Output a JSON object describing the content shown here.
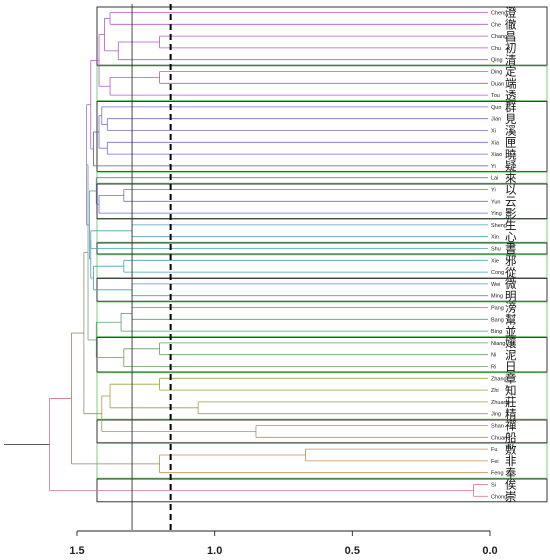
{
  "chart_data": {
    "type": "dendrogram",
    "orientation": "horizontal, root on left, leaves on right",
    "x_axis": {
      "range": [
        1.6,
        0.0
      ],
      "ticks": [
        1.5,
        1.0,
        0.5,
        0.0
      ],
      "tick_labels": [
        "1.5",
        "1.0",
        "0.5",
        "0.0"
      ],
      "reversed": true
    },
    "leaves": [
      {
        "id": "Cheng",
        "pinyin": "Cheng",
        "char": "澄"
      },
      {
        "id": "Che",
        "pinyin": "Che",
        "char": "徹"
      },
      {
        "id": "Chang",
        "pinyin": "Chang",
        "char": "昌"
      },
      {
        "id": "Chu",
        "pinyin": "Chu",
        "char": "初"
      },
      {
        "id": "Qing",
        "pinyin": "Qing",
        "char": "清"
      },
      {
        "id": "Ding",
        "pinyin": "Ding",
        "char": "定"
      },
      {
        "id": "Duan",
        "pinyin": "Duan",
        "char": "端"
      },
      {
        "id": "Tou",
        "pinyin": "Tou",
        "char": "透"
      },
      {
        "id": "Qun",
        "pinyin": "Qun",
        "char": "群"
      },
      {
        "id": "Jian",
        "pinyin": "Jian",
        "char": "見"
      },
      {
        "id": "Xi",
        "pinyin": "Xi",
        "char": "溪"
      },
      {
        "id": "Xia",
        "pinyin": "Xia",
        "char": "匣"
      },
      {
        "id": "Xiao",
        "pinyin": "Xiao",
        "char": "曉"
      },
      {
        "id": "Yi1",
        "pinyin": "Yi",
        "char": "疑"
      },
      {
        "id": "Lai",
        "pinyin": "Lai",
        "char": "來"
      },
      {
        "id": "Yi2",
        "pinyin": "Yi",
        "char": "以"
      },
      {
        "id": "Yun",
        "pinyin": "Yun",
        "char": "云"
      },
      {
        "id": "Ying",
        "pinyin": "Ying",
        "char": "影"
      },
      {
        "id": "Sheng",
        "pinyin": "Sheng",
        "char": "生"
      },
      {
        "id": "Xin",
        "pinyin": "Xin",
        "char": "心"
      },
      {
        "id": "Shu",
        "pinyin": "Shu",
        "char": "書"
      },
      {
        "id": "Xie",
        "pinyin": "Xie",
        "char": "邪"
      },
      {
        "id": "Cong",
        "pinyin": "Cong",
        "char": "從"
      },
      {
        "id": "Wei",
        "pinyin": "Wei",
        "char": "微"
      },
      {
        "id": "Ming",
        "pinyin": "Ming",
        "char": "明"
      },
      {
        "id": "Pang",
        "pinyin": "Pang",
        "char": "滂"
      },
      {
        "id": "Bang",
        "pinyin": "Bang",
        "char": "幫"
      },
      {
        "id": "Bing",
        "pinyin": "Bing",
        "char": "並"
      },
      {
        "id": "Niang",
        "pinyin": "Niang",
        "char": "孃"
      },
      {
        "id": "Ni",
        "pinyin": "Ni",
        "char": "泥"
      },
      {
        "id": "Ri",
        "pinyin": "Ri",
        "char": "日"
      },
      {
        "id": "Zhang",
        "pinyin": "Zhang",
        "char": "章"
      },
      {
        "id": "Zhi",
        "pinyin": "Zhi",
        "char": "知"
      },
      {
        "id": "Zhuang",
        "pinyin": "Zhuang",
        "char": "莊"
      },
      {
        "id": "Jing",
        "pinyin": "Jing",
        "char": "精"
      },
      {
        "id": "Shan",
        "pinyin": "Shan",
        "char": "禪"
      },
      {
        "id": "Chuan",
        "pinyin": "Chuan",
        "char": "船"
      },
      {
        "id": "Fu",
        "pinyin": "Fu",
        "char": "敷"
      },
      {
        "id": "Fei",
        "pinyin": "Fei",
        "char": "非"
      },
      {
        "id": "Feng",
        "pinyin": "Feng",
        "char": "奉"
      },
      {
        "id": "Si",
        "pinyin": "Si",
        "char": "俟"
      },
      {
        "id": "Chong",
        "pinyin": "Chong",
        "char": "崇"
      }
    ],
    "merges": [
      {
        "id": "m1",
        "children": [
          "Chang",
          "Chu"
        ],
        "height": 1.2,
        "color": "#b05cc8"
      },
      {
        "id": "m2",
        "children": [
          "m1",
          "Qing"
        ],
        "height": 1.35,
        "color": "#b05cc8"
      },
      {
        "id": "m3",
        "children": [
          "Cheng",
          "Che"
        ],
        "height": 1.38,
        "color": "#b05cc8"
      },
      {
        "id": "m4",
        "children": [
          "m3",
          "m2"
        ],
        "height": 1.4,
        "color": "#b05cc8"
      },
      {
        "id": "m5",
        "children": [
          "Ding",
          "Duan"
        ],
        "height": 1.2,
        "color": "#b05cc8"
      },
      {
        "id": "m6",
        "children": [
          "m5",
          "Tou"
        ],
        "height": 1.38,
        "color": "#b05cc8"
      },
      {
        "id": "m7",
        "children": [
          "m4",
          "m6"
        ],
        "height": 1.42,
        "color": "#b05cc8"
      },
      {
        "id": "m8",
        "children": [
          "Jian",
          "Xi"
        ],
        "height": 1.39,
        "color": "#7070c8"
      },
      {
        "id": "m9",
        "children": [
          "Qun",
          "m8"
        ],
        "height": 1.41,
        "color": "#7070c8"
      },
      {
        "id": "m10",
        "children": [
          "Xia",
          "Xiao"
        ],
        "height": 1.39,
        "color": "#7070c8"
      },
      {
        "id": "m11",
        "children": [
          "m9",
          "m10"
        ],
        "height": 1.42,
        "color": "#7070c8"
      },
      {
        "id": "m12",
        "children": [
          "m11",
          "Yi1"
        ],
        "height": 1.44,
        "color": "#5a5ab0"
      },
      {
        "id": "m13",
        "children": [
          "m7",
          "m12"
        ],
        "height": 1.45,
        "color": "#b05cc8"
      },
      {
        "id": "m14",
        "children": [
          "Yi2",
          "Yun"
        ],
        "height": 1.33,
        "color": "#7070c8"
      },
      {
        "id": "m15",
        "children": [
          "m14",
          "Ying"
        ],
        "height": 1.42,
        "color": "#7070c8"
      },
      {
        "id": "m16",
        "children": [
          "Lai",
          "m15"
        ],
        "height": 1.43,
        "color": "#7070c8"
      },
      {
        "id": "m17",
        "children": [
          "Sheng",
          "Xin"
        ],
        "height": 1.3,
        "color": "#4aa0b0"
      },
      {
        "id": "m18",
        "children": [
          "m17",
          "Shu"
        ],
        "height": 1.45,
        "color": "#4aa0b0"
      },
      {
        "id": "m19",
        "children": [
          "Xie",
          "Cong"
        ],
        "height": 1.33,
        "color": "#4aa0b0"
      },
      {
        "id": "m20",
        "children": [
          "Wei",
          "Ming"
        ],
        "height": 1.3,
        "color": "#4aa0b0"
      },
      {
        "id": "m21",
        "children": [
          "m19",
          "m20"
        ],
        "height": 1.44,
        "color": "#4aa0b0"
      },
      {
        "id": "m22",
        "children": [
          "m18",
          "m21"
        ],
        "height": 1.45,
        "color": "#4aa0b0"
      },
      {
        "id": "m23",
        "children": [
          "m16",
          "m22"
        ],
        "height": 1.455,
        "color": "#5a9ab0"
      },
      {
        "id": "m24",
        "children": [
          "m13",
          "m23"
        ],
        "height": 1.465,
        "color": "#8a7ab8"
      },
      {
        "id": "m25",
        "children": [
          "Pang",
          "Bang"
        ],
        "height": 1.3,
        "color": "#50a070"
      },
      {
        "id": "m26",
        "children": [
          "m25",
          "Bing"
        ],
        "height": 1.34,
        "color": "#50a070"
      },
      {
        "id": "m27",
        "children": [
          "Niang",
          "Ni"
        ],
        "height": 1.2,
        "color": "#60a060"
      },
      {
        "id": "m28",
        "children": [
          "m27",
          "Ri"
        ],
        "height": 1.33,
        "color": "#60a060"
      },
      {
        "id": "m29",
        "children": [
          "m26",
          "m28"
        ],
        "height": 1.43,
        "color": "#5aa068"
      },
      {
        "id": "m30",
        "children": [
          "m24",
          "m29"
        ],
        "height": 1.46,
        "color": "#7a9a8a"
      },
      {
        "id": "m31",
        "children": [
          "Zhang",
          "Zhi"
        ],
        "height": 1.2,
        "color": "#a0a040"
      },
      {
        "id": "m32",
        "children": [
          "Zhuang",
          "Jing"
        ],
        "height": 1.06,
        "color": "#a0a040"
      },
      {
        "id": "m33",
        "children": [
          "m31",
          "m32"
        ],
        "height": 1.38,
        "color": "#a0a040"
      },
      {
        "id": "m34",
        "children": [
          "Shan",
          "Chuan"
        ],
        "height": 0.85,
        "color": "#a0a040"
      },
      {
        "id": "m35",
        "children": [
          "m33",
          "m34"
        ],
        "height": 1.41,
        "color": "#a0a040"
      },
      {
        "id": "m36",
        "children": [
          "m30",
          "m35"
        ],
        "height": 1.475,
        "color": "#909070"
      },
      {
        "id": "m37",
        "children": [
          "Fu",
          "Fei"
        ],
        "height": 0.67,
        "color": "#c09050"
      },
      {
        "id": "m38",
        "children": [
          "m37",
          "Feng"
        ],
        "height": 1.2,
        "color": "#c09050"
      },
      {
        "id": "m39",
        "children": [
          "m36",
          "m38"
        ],
        "height": 1.52,
        "color": "#a08060"
      },
      {
        "id": "m40",
        "children": [
          "Si",
          "Chong"
        ],
        "height": 0.06,
        "color": "#d87098"
      },
      {
        "id": "m41",
        "children": [
          "m39",
          "m40"
        ],
        "height": 1.6,
        "color": "#d87098"
      }
    ],
    "root_color": "#444444",
    "cut_lines": [
      {
        "height": 1.3,
        "style": "solid",
        "color": "#333333"
      },
      {
        "height": 1.16,
        "style": "dashed",
        "color": "#000000"
      }
    ],
    "cluster_boxes": [
      {
        "from": "Cheng",
        "to": "Qing",
        "border": "#222222"
      },
      {
        "from": "Ding",
        "to": "Tou",
        "border": "#6ccc6c"
      },
      {
        "from": "Qun",
        "to": "Yi1",
        "border": "#222222"
      },
      {
        "from": "Lai",
        "to": "Lai",
        "border": "#6ccc6c"
      },
      {
        "from": "Yi2",
        "to": "Ying",
        "border": "#222222"
      },
      {
        "from": "Sheng",
        "to": "Xin",
        "border": "#6ccc6c"
      },
      {
        "from": "Shu",
        "to": "Shu",
        "border": "#222222"
      },
      {
        "from": "Xie",
        "to": "Cong",
        "border": "#6ccc6c"
      },
      {
        "from": "Wei",
        "to": "Ming",
        "border": "#222222"
      },
      {
        "from": "Pang",
        "to": "Bing",
        "border": "#6ccc6c"
      },
      {
        "from": "Niang",
        "to": "Ri",
        "border": "#222222"
      },
      {
        "from": "Zhang",
        "to": "Jing",
        "border": "#6ccc6c"
      },
      {
        "from": "Shan",
        "to": "Chuan",
        "border": "#222222"
      },
      {
        "from": "Fu",
        "to": "Feng",
        "border": "#6ccc6c"
      },
      {
        "from": "Si",
        "to": "Chong",
        "border": "#222222"
      }
    ]
  }
}
